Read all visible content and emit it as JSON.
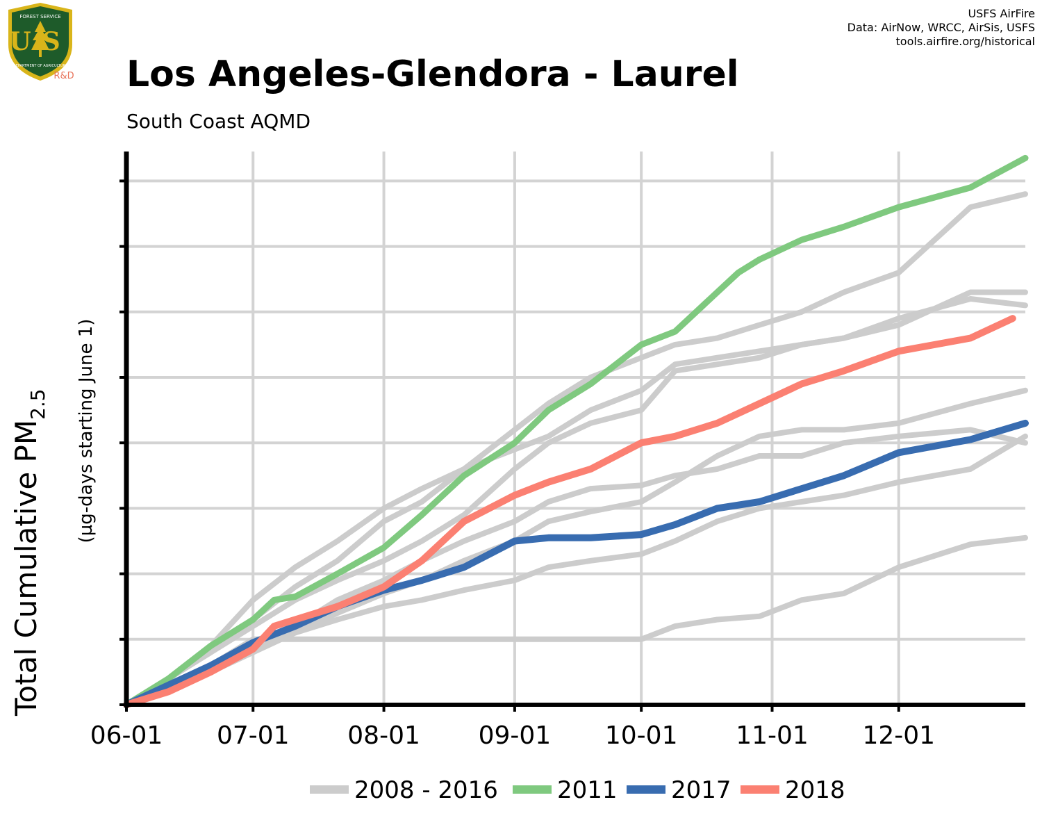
{
  "header": {
    "title": "Los Angeles-Glendora - Laurel",
    "subtitle": "South Coast AQMD",
    "credits": [
      "USFS AirFire",
      "Data: AirNow, WRCC, AirSis, USFS",
      "tools.airfire.org/historical"
    ]
  },
  "logo": {
    "icon": "usfs-shield-icon",
    "text_top": "FOREST SERVICE",
    "text_initials": "US",
    "text_bottom": "DEPARTMENT OF AGRICULTURE",
    "tag": "R&D",
    "colors": {
      "shield": "#1e5b2a",
      "border": "#d9b51a",
      "tag": "#e8735a"
    }
  },
  "colors": {
    "history": "#cccccc",
    "y2011": "#7fc97f",
    "y2017": "#386cb0",
    "y2018": "#fb8072",
    "grid": "#d3d3d3",
    "axis": "#000000"
  },
  "chart_data": {
    "type": "line",
    "title": "Los Angeles-Glendora - Laurel",
    "subtitle": "South Coast AQMD",
    "ylabel": "Total Cumulative PM",
    "ylabel_sub": "2.5",
    "ylabel_note": "(µg-days starting June 1)",
    "x_tick_labels": [
      "06-01",
      "07-01",
      "08-01",
      "09-01",
      "10-01",
      "11-01",
      "12-01"
    ],
    "x_tick_days": [
      0,
      30,
      61,
      92,
      122,
      153,
      183
    ],
    "xlim": [
      0,
      213
    ],
    "ylim": [
      0,
      8.45
    ],
    "y_ticks": [
      0,
      1,
      2,
      3,
      4,
      5,
      6,
      7,
      8
    ],
    "y_tick_labels_shown": false,
    "grid": true,
    "legend_position": "bottom",
    "legend": [
      "2008 - 2016",
      "2011",
      "2017",
      "2018"
    ],
    "series": [
      {
        "name": "2008 - 2016",
        "color": "#cccccc",
        "width": 8,
        "points": [
          [
            0,
            0
          ],
          [
            10,
            0.4
          ],
          [
            20,
            0.8
          ],
          [
            30,
            1.3
          ],
          [
            40,
            1.8
          ],
          [
            50,
            2.2
          ],
          [
            61,
            2.8
          ],
          [
            70,
            3.1
          ],
          [
            80,
            3.6
          ],
          [
            92,
            4.2
          ],
          [
            100,
            4.6
          ],
          [
            110,
            5.0
          ],
          [
            122,
            5.3
          ],
          [
            130,
            5.5
          ],
          [
            140,
            5.6
          ],
          [
            150,
            5.8
          ],
          [
            160,
            6.0
          ],
          [
            170,
            6.3
          ],
          [
            183,
            6.6
          ],
          [
            200,
            7.6
          ],
          [
            213,
            7.8
          ]
        ]
      },
      {
        "name": "2008 - 2016",
        "color": "#cccccc",
        "width": 8,
        "points": [
          [
            0,
            0
          ],
          [
            10,
            0.4
          ],
          [
            20,
            0.8
          ],
          [
            30,
            1.2
          ],
          [
            40,
            1.6
          ],
          [
            50,
            1.9
          ],
          [
            61,
            2.2
          ],
          [
            70,
            2.5
          ],
          [
            80,
            2.9
          ],
          [
            92,
            3.6
          ],
          [
            100,
            4.0
          ],
          [
            110,
            4.3
          ],
          [
            122,
            4.5
          ],
          [
            130,
            5.1
          ],
          [
            140,
            5.2
          ],
          [
            150,
            5.3
          ],
          [
            160,
            5.5
          ],
          [
            170,
            5.6
          ],
          [
            183,
            5.8
          ],
          [
            200,
            6.3
          ],
          [
            213,
            6.3
          ]
        ]
      },
      {
        "name": "2008 - 2016",
        "color": "#cccccc",
        "width": 8,
        "points": [
          [
            0,
            0
          ],
          [
            10,
            0.3
          ],
          [
            20,
            0.6
          ],
          [
            30,
            1.0
          ],
          [
            40,
            1.0
          ],
          [
            50,
            1.0
          ],
          [
            61,
            1.0
          ],
          [
            70,
            1.0
          ],
          [
            80,
            1.0
          ],
          [
            92,
            1.0
          ],
          [
            100,
            1.0
          ],
          [
            110,
            1.0
          ],
          [
            122,
            1.0
          ],
          [
            130,
            1.2
          ],
          [
            140,
            1.3
          ],
          [
            150,
            1.35
          ],
          [
            160,
            1.6
          ],
          [
            170,
            1.7
          ],
          [
            183,
            2.1
          ],
          [
            200,
            2.45
          ],
          [
            213,
            2.55
          ]
        ]
      },
      {
        "name": "2008 - 2016",
        "color": "#cccccc",
        "width": 8,
        "points": [
          [
            0,
            0
          ],
          [
            10,
            0.4
          ],
          [
            20,
            0.9
          ],
          [
            30,
            1.6
          ],
          [
            40,
            2.1
          ],
          [
            50,
            2.5
          ],
          [
            61,
            3.0
          ],
          [
            70,
            3.3
          ],
          [
            80,
            3.6
          ],
          [
            92,
            3.9
          ],
          [
            100,
            4.1
          ],
          [
            110,
            4.5
          ],
          [
            122,
            4.8
          ],
          [
            130,
            5.2
          ],
          [
            140,
            5.3
          ],
          [
            150,
            5.4
          ],
          [
            160,
            5.5
          ],
          [
            170,
            5.6
          ],
          [
            183,
            5.9
          ],
          [
            200,
            6.2
          ],
          [
            213,
            6.1
          ]
        ]
      },
      {
        "name": "2008 - 2016",
        "color": "#cccccc",
        "width": 8,
        "points": [
          [
            0,
            0
          ],
          [
            10,
            0.2
          ],
          [
            20,
            0.5
          ],
          [
            30,
            0.8
          ],
          [
            40,
            1.1
          ],
          [
            50,
            1.4
          ],
          [
            61,
            1.7
          ],
          [
            70,
            1.9
          ],
          [
            80,
            2.2
          ],
          [
            92,
            2.5
          ],
          [
            100,
            2.8
          ],
          [
            110,
            2.95
          ],
          [
            122,
            3.1
          ],
          [
            130,
            3.4
          ],
          [
            140,
            3.8
          ],
          [
            150,
            4.1
          ],
          [
            160,
            4.2
          ],
          [
            170,
            4.2
          ],
          [
            183,
            4.3
          ],
          [
            200,
            4.6
          ],
          [
            213,
            4.8
          ]
        ]
      },
      {
        "name": "2008 - 2016",
        "color": "#cccccc",
        "width": 8,
        "points": [
          [
            0,
            0
          ],
          [
            10,
            0.3
          ],
          [
            20,
            0.6
          ],
          [
            30,
            0.9
          ],
          [
            40,
            1.1
          ],
          [
            50,
            1.3
          ],
          [
            61,
            1.5
          ],
          [
            70,
            1.6
          ],
          [
            80,
            1.75
          ],
          [
            92,
            1.9
          ],
          [
            100,
            2.1
          ],
          [
            110,
            2.2
          ],
          [
            122,
            2.3
          ],
          [
            130,
            2.5
          ],
          [
            140,
            2.8
          ],
          [
            150,
            3.0
          ],
          [
            160,
            3.1
          ],
          [
            170,
            3.2
          ],
          [
            183,
            3.4
          ],
          [
            200,
            3.6
          ],
          [
            213,
            4.1
          ]
        ]
      },
      {
        "name": "2008 - 2016",
        "color": "#cccccc",
        "width": 8,
        "points": [
          [
            0,
            0
          ],
          [
            10,
            0.3
          ],
          [
            20,
            0.6
          ],
          [
            30,
            0.9
          ],
          [
            40,
            1.2
          ],
          [
            50,
            1.6
          ],
          [
            61,
            1.9
          ],
          [
            70,
            2.2
          ],
          [
            80,
            2.5
          ],
          [
            92,
            2.8
          ],
          [
            100,
            3.1
          ],
          [
            110,
            3.3
          ],
          [
            122,
            3.35
          ],
          [
            130,
            3.5
          ],
          [
            140,
            3.6
          ],
          [
            150,
            3.8
          ],
          [
            160,
            3.8
          ],
          [
            170,
            4.0
          ],
          [
            183,
            4.1
          ],
          [
            200,
            4.2
          ],
          [
            213,
            4.0
          ]
        ]
      }
    ],
    "highlight_series": [
      {
        "name": "2011",
        "color": "#7fc97f",
        "width": 9,
        "points": [
          [
            0,
            0
          ],
          [
            10,
            0.4
          ],
          [
            20,
            0.9
          ],
          [
            30,
            1.3
          ],
          [
            35,
            1.6
          ],
          [
            40,
            1.65
          ],
          [
            50,
            2.0
          ],
          [
            61,
            2.4
          ],
          [
            70,
            2.9
          ],
          [
            80,
            3.5
          ],
          [
            92,
            4.0
          ],
          [
            100,
            4.5
          ],
          [
            110,
            4.9
          ],
          [
            122,
            5.5
          ],
          [
            130,
            5.7
          ],
          [
            140,
            6.3
          ],
          [
            145,
            6.6
          ],
          [
            150,
            6.8
          ],
          [
            160,
            7.1
          ],
          [
            170,
            7.3
          ],
          [
            183,
            7.6
          ],
          [
            200,
            7.9
          ],
          [
            213,
            8.35
          ]
        ]
      },
      {
        "name": "2017",
        "color": "#386cb0",
        "width": 10,
        "points": [
          [
            0,
            0
          ],
          [
            10,
            0.3
          ],
          [
            20,
            0.6
          ],
          [
            30,
            0.95
          ],
          [
            40,
            1.2
          ],
          [
            50,
            1.5
          ],
          [
            61,
            1.75
          ],
          [
            70,
            1.9
          ],
          [
            80,
            2.1
          ],
          [
            92,
            2.5
          ],
          [
            100,
            2.55
          ],
          [
            110,
            2.55
          ],
          [
            122,
            2.6
          ],
          [
            130,
            2.75
          ],
          [
            140,
            3.0
          ],
          [
            150,
            3.1
          ],
          [
            160,
            3.3
          ],
          [
            170,
            3.5
          ],
          [
            183,
            3.85
          ],
          [
            200,
            4.05
          ],
          [
            213,
            4.3
          ]
        ]
      },
      {
        "name": "2018",
        "color": "#fb8072",
        "width": 10,
        "points": [
          [
            0,
            0
          ],
          [
            10,
            0.2
          ],
          [
            20,
            0.5
          ],
          [
            30,
            0.85
          ],
          [
            35,
            1.2
          ],
          [
            40,
            1.3
          ],
          [
            50,
            1.5
          ],
          [
            61,
            1.8
          ],
          [
            70,
            2.2
          ],
          [
            80,
            2.8
          ],
          [
            92,
            3.2
          ],
          [
            100,
            3.4
          ],
          [
            110,
            3.6
          ],
          [
            122,
            4.0
          ],
          [
            130,
            4.1
          ],
          [
            140,
            4.3
          ],
          [
            150,
            4.6
          ],
          [
            160,
            4.9
          ],
          [
            170,
            5.1
          ],
          [
            183,
            5.4
          ],
          [
            200,
            5.6
          ],
          [
            210,
            5.9
          ]
        ]
      }
    ]
  }
}
